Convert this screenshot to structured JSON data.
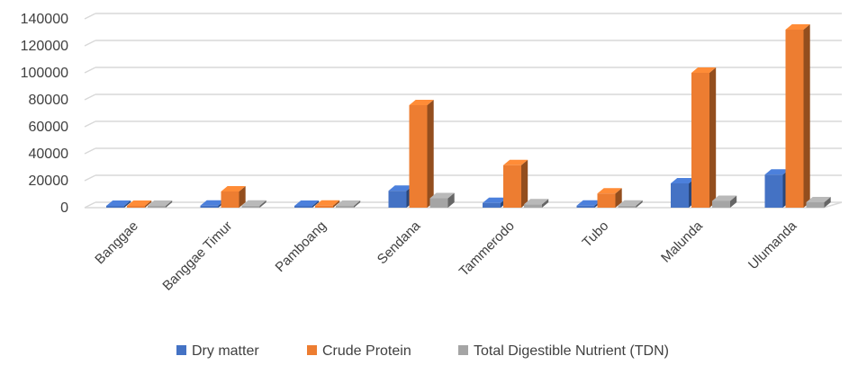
{
  "chart_data": {
    "type": "bar",
    "variant": "3d-clustered-column",
    "categories": [
      "Banggae",
      "Banggae Timur",
      "Pamboang",
      "Sendana",
      "Tammerodo",
      "Tubo",
      "Malunda",
      "Ulumanda"
    ],
    "series": [
      {
        "name": "Dry matter",
        "color": "#4472C4",
        "values": [
          300,
          1500,
          1000,
          12500,
          3500,
          1500,
          18000,
          24500
        ]
      },
      {
        "name": "Crude Protein",
        "color": "#ED7D31",
        "values": [
          500,
          12000,
          1500,
          76000,
          31500,
          10500,
          100000,
          132000
        ]
      },
      {
        "name": "Total Digestible Nutrient (TDN)",
        "color": "#A5A5A5",
        "values": [
          200,
          1500,
          200,
          7000,
          2500,
          1500,
          5000,
          4000
        ]
      }
    ],
    "ylim": [
      0,
      140000
    ],
    "yticks": [
      "0",
      "20000",
      "40000",
      "60000",
      "80000",
      "100000",
      "120000",
      "140000"
    ],
    "grid": true,
    "legend_position": "bottom",
    "title": "",
    "xlabel": "",
    "ylabel": ""
  }
}
